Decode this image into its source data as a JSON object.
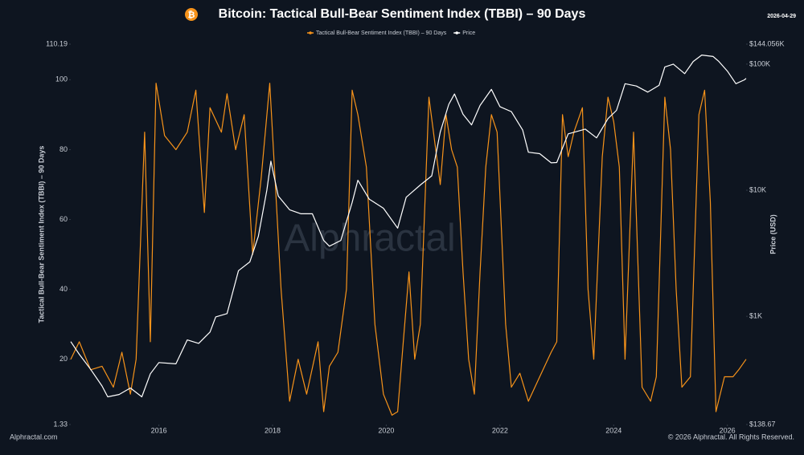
{
  "chart_data": {
    "type": "line",
    "title": "Bitcoin: Tactical Bull-Bear Sentiment Index (TBBI) – 90 Days",
    "date": "2026-04-29",
    "ylabel": "Tactical Bull-Bear Sentiment Index (TBBI) – 90 Days",
    "y2label": "Price (USD)",
    "watermark": "Alphractal",
    "source": "Alphractal.com",
    "copyright": "© 2026 Alphractal. All Rights Reserved.",
    "legend": "top",
    "xlim": [
      2014.45,
      2026.33
    ],
    "xticks": [
      2016,
      2018,
      2020,
      2022,
      2024,
      2026
    ],
    "ylim": [
      1.33,
      110.19
    ],
    "yticks": [
      1.33,
      20,
      40,
      60,
      80,
      100,
      110.19
    ],
    "y2scale": "log",
    "y2lim": [
      138.67,
      144056
    ],
    "y2ticks": [
      {
        "value": 138.67,
        "label": "$138.67"
      },
      {
        "value": 1000,
        "label": "$1K"
      },
      {
        "value": 10000,
        "label": "$10K"
      },
      {
        "value": 100000,
        "label": "$100K"
      },
      {
        "value": 144056,
        "label": "$144.056K"
      }
    ],
    "series": [
      {
        "name": "Tactical Bull-Bear Sentiment Index (TBBI) – 90 Days",
        "color": "#f7931a",
        "x": [
          2014.45,
          2014.6,
          2014.8,
          2015.0,
          2015.2,
          2015.35,
          2015.5,
          2015.6,
          2015.75,
          2015.85,
          2015.95,
          2016.1,
          2016.3,
          2016.5,
          2016.65,
          2016.8,
          2016.9,
          2017.1,
          2017.2,
          2017.35,
          2017.5,
          2017.65,
          2017.8,
          2017.95,
          2018.05,
          2018.15,
          2018.3,
          2018.45,
          2018.6,
          2018.8,
          2018.9,
          2019.0,
          2019.15,
          2019.3,
          2019.4,
          2019.5,
          2019.65,
          2019.8,
          2019.95,
          2020.1,
          2020.2,
          2020.3,
          2020.4,
          2020.5,
          2020.6,
          2020.75,
          2020.95,
          2021.05,
          2021.15,
          2021.25,
          2021.35,
          2021.45,
          2021.55,
          2021.65,
          2021.75,
          2021.85,
          2021.95,
          2022.1,
          2022.2,
          2022.35,
          2022.5,
          2022.7,
          2022.9,
          2023.0,
          2023.1,
          2023.2,
          2023.3,
          2023.45,
          2023.55,
          2023.65,
          2023.8,
          2023.9,
          2024.0,
          2024.1,
          2024.2,
          2024.35,
          2024.5,
          2024.65,
          2024.75,
          2024.9,
          2025.0,
          2025.1,
          2025.2,
          2025.35,
          2025.5,
          2025.6,
          2025.7,
          2025.8,
          2025.95,
          2026.1,
          2026.2,
          2026.33
        ],
        "values": [
          20,
          25,
          17,
          18,
          12,
          22,
          10,
          20,
          85,
          25,
          99,
          84,
          80,
          85,
          97,
          62,
          92,
          85,
          96,
          80,
          90,
          50,
          72,
          99,
          70,
          40,
          8,
          20,
          10,
          25,
          5,
          18,
          22,
          40,
          97,
          90,
          75,
          30,
          10,
          4,
          5,
          25,
          45,
          20,
          30,
          95,
          70,
          90,
          80,
          75,
          45,
          20,
          10,
          45,
          75,
          90,
          85,
          30,
          12,
          16,
          8,
          15,
          22,
          25,
          90,
          78,
          85,
          92,
          40,
          20,
          78,
          95,
          88,
          75,
          20,
          85,
          12,
          8,
          15,
          95,
          80,
          40,
          12,
          15,
          90,
          97,
          65,
          5,
          15,
          15,
          17,
          20
        ]
      },
      {
        "name": "Price",
        "color": "#ffffff",
        "axis": "y2",
        "x": [
          2014.45,
          2014.6,
          2014.8,
          2015.0,
          2015.1,
          2015.3,
          2015.5,
          2015.7,
          2015.85,
          2016.0,
          2016.3,
          2016.5,
          2016.7,
          2016.9,
          2017.0,
          2017.2,
          2017.4,
          2017.6,
          2017.75,
          2017.9,
          2017.97,
          2018.1,
          2018.3,
          2018.5,
          2018.7,
          2018.9,
          2019.0,
          2019.2,
          2019.4,
          2019.5,
          2019.7,
          2019.95,
          2020.2,
          2020.35,
          2020.6,
          2020.8,
          2020.95,
          2021.1,
          2021.2,
          2021.35,
          2021.5,
          2021.65,
          2021.85,
          2022.0,
          2022.2,
          2022.4,
          2022.5,
          2022.7,
          2022.9,
          2023.0,
          2023.2,
          2023.5,
          2023.7,
          2023.9,
          2024.05,
          2024.2,
          2024.4,
          2024.6,
          2024.8,
          2024.9,
          2025.05,
          2025.25,
          2025.4,
          2025.55,
          2025.75,
          2025.85,
          2026.0,
          2026.15,
          2026.3,
          2026.33
        ],
        "values": [
          630,
          500,
          380,
          280,
          230,
          240,
          270,
          230,
          350,
          430,
          420,
          650,
          610,
          750,
          990,
          1050,
          2300,
          2700,
          4300,
          10000,
          17000,
          9000,
          7000,
          6500,
          6500,
          4000,
          3600,
          4000,
          8000,
          12000,
          8500,
          7200,
          5000,
          8800,
          11000,
          13000,
          29000,
          48000,
          58000,
          40000,
          33000,
          47000,
          63000,
          46000,
          42000,
          30000,
          20000,
          19500,
          16500,
          16600,
          28000,
          30500,
          26000,
          37000,
          43000,
          70000,
          67000,
          60000,
          68000,
          95000,
          100000,
          84000,
          105000,
          118000,
          115000,
          105000,
          88000,
          70000,
          75000,
          77000
        ]
      }
    ]
  }
}
